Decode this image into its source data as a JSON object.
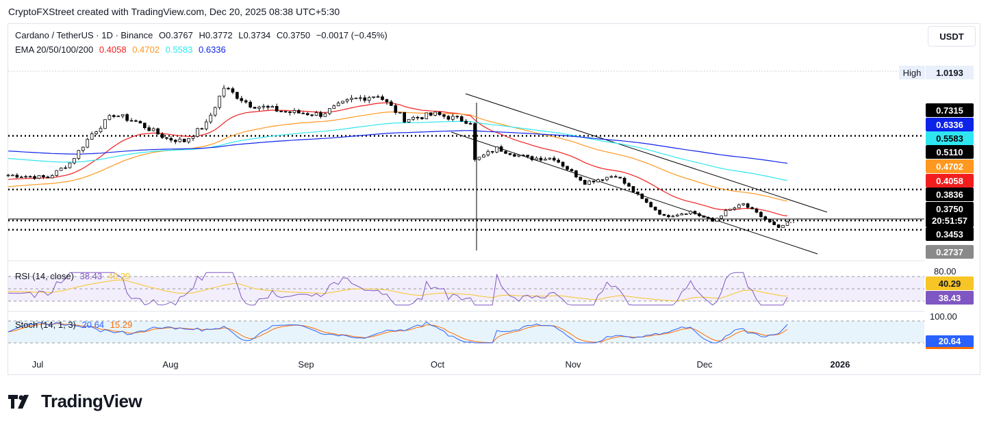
{
  "caption": "CryptoFXStreet created with TradingView.com, Dec 20, 2025 08:38 UTC+5:30",
  "currency_button": "USDT",
  "legend": {
    "symbol": "Cardano / TetherUS · 1D · Binance",
    "open": "O0.3767",
    "high": "H0.3772",
    "low": "L0.3734",
    "close": "C0.3750",
    "change": "−0.0017 (−0.45%)",
    "ema_label": "EMA 20/50/100/200",
    "ema20": "0.4058",
    "ema50": "0.4702",
    "ema100": "0.5583",
    "ema200": "0.6336"
  },
  "high_marker": {
    "label": "High",
    "value": "1.0193"
  },
  "price_labels": [
    {
      "text": "0.7315",
      "bg": "#000000",
      "fg": "#ffffff"
    },
    {
      "text": "0.6336",
      "bg": "#0d23e8",
      "fg": "#ffffff"
    },
    {
      "text": "0.5583",
      "bg": "#2ee6f0",
      "fg": "#000000"
    },
    {
      "text": "0.5110",
      "bg": "#000000",
      "fg": "#ffffff"
    },
    {
      "text": "0.4702",
      "bg": "#ff9820",
      "fg": "#ffffff"
    },
    {
      "text": "0.4058",
      "bg": "#f21e1e",
      "fg": "#ffffff"
    },
    {
      "text": "0.3836",
      "bg": "#000000",
      "fg": "#ffffff"
    },
    {
      "text": "0.3750",
      "bg": "#000000",
      "fg": "#ffffff"
    },
    {
      "text": "20:51:57",
      "bg": "#000000",
      "fg": "#ffffff"
    },
    {
      "text": "0.3453",
      "bg": "#000000",
      "fg": "#ffffff"
    },
    {
      "text": "0.2737",
      "bg": "#8a8a8a",
      "fg": "#ffffff"
    }
  ],
  "rsi": {
    "title": "RSI (14, close)",
    "value": "38.43",
    "ma_value": "40.29",
    "level_label": "80.00",
    "tag_ma": "40.29",
    "tag_rsi": "38.43"
  },
  "stoch": {
    "title": "Stoch (14, 1, 3)",
    "k_value": "20.64",
    "d_value": "15.29",
    "level_label": "100.00",
    "tag_k": "20.64"
  },
  "x_axis": [
    "Jul",
    "Aug",
    "Sep",
    "Oct",
    "Nov",
    "Dec",
    "2026"
  ],
  "logo_text": "TradingView",
  "colors": {
    "up": "#ffffff",
    "down": "#000000",
    "ema20": "#f21e1e",
    "ema50": "#ff9820",
    "ema100": "#2ee6f0",
    "ema200": "#0d23e8",
    "rsi": "#7e57c2",
    "rsi_ma": "#f7c525",
    "stoch_k": "#2962ff",
    "stoch_d": "#ff6d00"
  },
  "chart_data": [
    {
      "type": "candlestick",
      "title": "Cardano / TetherUS · 1D · Binance",
      "x_range": [
        "2025-06-26",
        "2025-12-20"
      ],
      "y_visible_range": [
        0.26,
        1.02
      ],
      "horizontal_levels": [
        0.7315,
        0.511,
        0.3836,
        0.3453
      ],
      "closes_approx": [
        {
          "date": "2025-06-26",
          "close": 0.57
        },
        {
          "date": "2025-07-05",
          "close": 0.56
        },
        {
          "date": "2025-07-10",
          "close": 0.62
        },
        {
          "date": "2025-07-15",
          "close": 0.74
        },
        {
          "date": "2025-07-20",
          "close": 0.82
        },
        {
          "date": "2025-07-25",
          "close": 0.79
        },
        {
          "date": "2025-08-01",
          "close": 0.72
        },
        {
          "date": "2025-08-05",
          "close": 0.71
        },
        {
          "date": "2025-08-10",
          "close": 0.78
        },
        {
          "date": "2025-08-14",
          "close": 0.93
        },
        {
          "date": "2025-08-20",
          "close": 0.86
        },
        {
          "date": "2025-08-28",
          "close": 0.83
        },
        {
          "date": "2025-09-05",
          "close": 0.82
        },
        {
          "date": "2025-09-12",
          "close": 0.88
        },
        {
          "date": "2025-09-18",
          "close": 0.9
        },
        {
          "date": "2025-09-24",
          "close": 0.8
        },
        {
          "date": "2025-10-01",
          "close": 0.82
        },
        {
          "date": "2025-10-09",
          "close": 0.79
        },
        {
          "date": "2025-10-10",
          "close": 0.63
        },
        {
          "date": "2025-10-15",
          "close": 0.68
        },
        {
          "date": "2025-10-22",
          "close": 0.64
        },
        {
          "date": "2025-10-28",
          "close": 0.64
        },
        {
          "date": "2025-11-04",
          "close": 0.54
        },
        {
          "date": "2025-11-11",
          "close": 0.57
        },
        {
          "date": "2025-11-17",
          "close": 0.47
        },
        {
          "date": "2025-11-22",
          "close": 0.4
        },
        {
          "date": "2025-11-28",
          "close": 0.42
        },
        {
          "date": "2025-12-03",
          "close": 0.38
        },
        {
          "date": "2025-12-06",
          "close": 0.42
        },
        {
          "date": "2025-12-10",
          "close": 0.45
        },
        {
          "date": "2025-12-14",
          "close": 0.4
        },
        {
          "date": "2025-12-18",
          "close": 0.35
        },
        {
          "date": "2025-12-20",
          "close": 0.375
        }
      ],
      "ema_last": {
        "ema20": 0.4058,
        "ema50": 0.4702,
        "ema100": 0.5583,
        "ema200": 0.6336
      }
    },
    {
      "type": "line",
      "title": "RSI (14, close)",
      "series": [
        {
          "name": "RSI",
          "last": 38.43
        },
        {
          "name": "RSI MA",
          "last": 40.29
        }
      ],
      "levels": [
        80,
        30
      ]
    },
    {
      "type": "line",
      "title": "Stoch (14, 1, 3)",
      "series": [
        {
          "name": "%K",
          "last": 20.64
        },
        {
          "name": "%D",
          "last": 15.29
        }
      ],
      "levels": [
        100,
        20
      ]
    }
  ]
}
